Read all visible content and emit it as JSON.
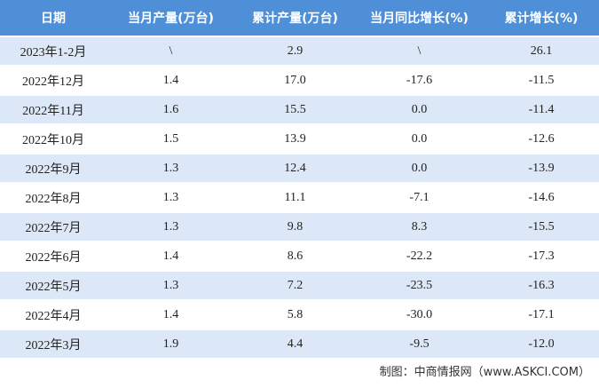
{
  "table": {
    "header": [
      "日期",
      "当月产量(万台)",
      "累计产量(万台)",
      "当月同比增长(%)",
      "累计增长(%)"
    ],
    "rows": [
      [
        "2023年1-2月",
        "\\",
        "2.9",
        "\\",
        "26.1"
      ],
      [
        "2022年12月",
        "1.4",
        "17.0",
        "-17.6",
        "-11.5"
      ],
      [
        "2022年11月",
        "1.6",
        "15.5",
        "0.0",
        "-11.4"
      ],
      [
        "2022年10月",
        "1.5",
        "13.9",
        "0.0",
        "-12.6"
      ],
      [
        "2022年9月",
        "1.3",
        "12.4",
        "0.0",
        "-13.9"
      ],
      [
        "2022年8月",
        "1.3",
        "11.1",
        "-7.1",
        "-14.6"
      ],
      [
        "2022年7月",
        "1.3",
        "9.8",
        "8.3",
        "-15.5"
      ],
      [
        "2022年6月",
        "1.4",
        "8.6",
        "-22.2",
        "-17.3"
      ],
      [
        "2022年5月",
        "1.3",
        "7.2",
        "-23.5",
        "-16.3"
      ],
      [
        "2022年4月",
        "1.4",
        "5.8",
        "-30.0",
        "-17.1"
      ],
      [
        "2022年3月",
        "1.9",
        "4.4",
        "-9.5",
        "-12.0"
      ]
    ]
  },
  "footer": "制图：中商情报网（www.ASKCI.COM）"
}
